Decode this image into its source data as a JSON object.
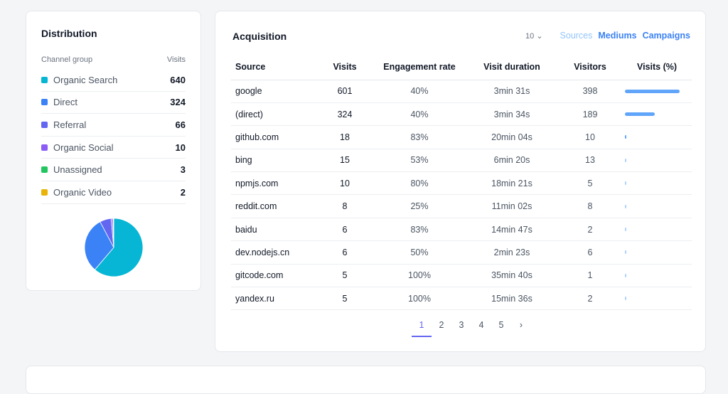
{
  "distribution": {
    "title": "Distribution",
    "col_channel": "Channel group",
    "col_visits": "Visits",
    "items": [
      {
        "label": "Organic Search",
        "visits": "640",
        "color": "#06b6d4"
      },
      {
        "label": "Direct",
        "visits": "324",
        "color": "#3b82f6"
      },
      {
        "label": "Referral",
        "visits": "66",
        "color": "#6366f1"
      },
      {
        "label": "Organic Social",
        "visits": "10",
        "color": "#8b5cf6"
      },
      {
        "label": "Unassigned",
        "visits": "3",
        "color": "#22c55e"
      },
      {
        "label": "Organic Video",
        "visits": "2",
        "color": "#eab308"
      }
    ]
  },
  "acquisition": {
    "title": "Acquisition",
    "page_size": "10",
    "tabs": [
      "Sources",
      "Mediums",
      "Campaigns"
    ],
    "active_tab": "Sources",
    "columns": [
      "Source",
      "Visits",
      "Engagement rate",
      "Visit duration",
      "Visitors",
      "Visits (%)"
    ],
    "rows": [
      [
        "google",
        "601",
        "40%",
        "3min 31s",
        "398"
      ],
      [
        "(direct)",
        "324",
        "40%",
        "3min 34s",
        "189"
      ],
      [
        "github.com",
        "18",
        "83%",
        "20min 04s",
        "10"
      ],
      [
        "bing",
        "15",
        "53%",
        "6min 20s",
        "13"
      ],
      [
        "npmjs.com",
        "10",
        "80%",
        "18min 21s",
        "5"
      ],
      [
        "reddit.com",
        "8",
        "25%",
        "11min 02s",
        "8"
      ],
      [
        "baidu",
        "6",
        "83%",
        "14min 47s",
        "2"
      ],
      [
        "dev.nodejs.cn",
        "6",
        "50%",
        "2min 23s",
        "6"
      ],
      [
        "gitcode.com",
        "5",
        "100%",
        "35min 40s",
        "1"
      ],
      [
        "yandex.ru",
        "5",
        "100%",
        "15min 36s",
        "2"
      ]
    ],
    "pages": [
      "1",
      "2",
      "3",
      "4",
      "5"
    ],
    "current_page": "1"
  }
}
